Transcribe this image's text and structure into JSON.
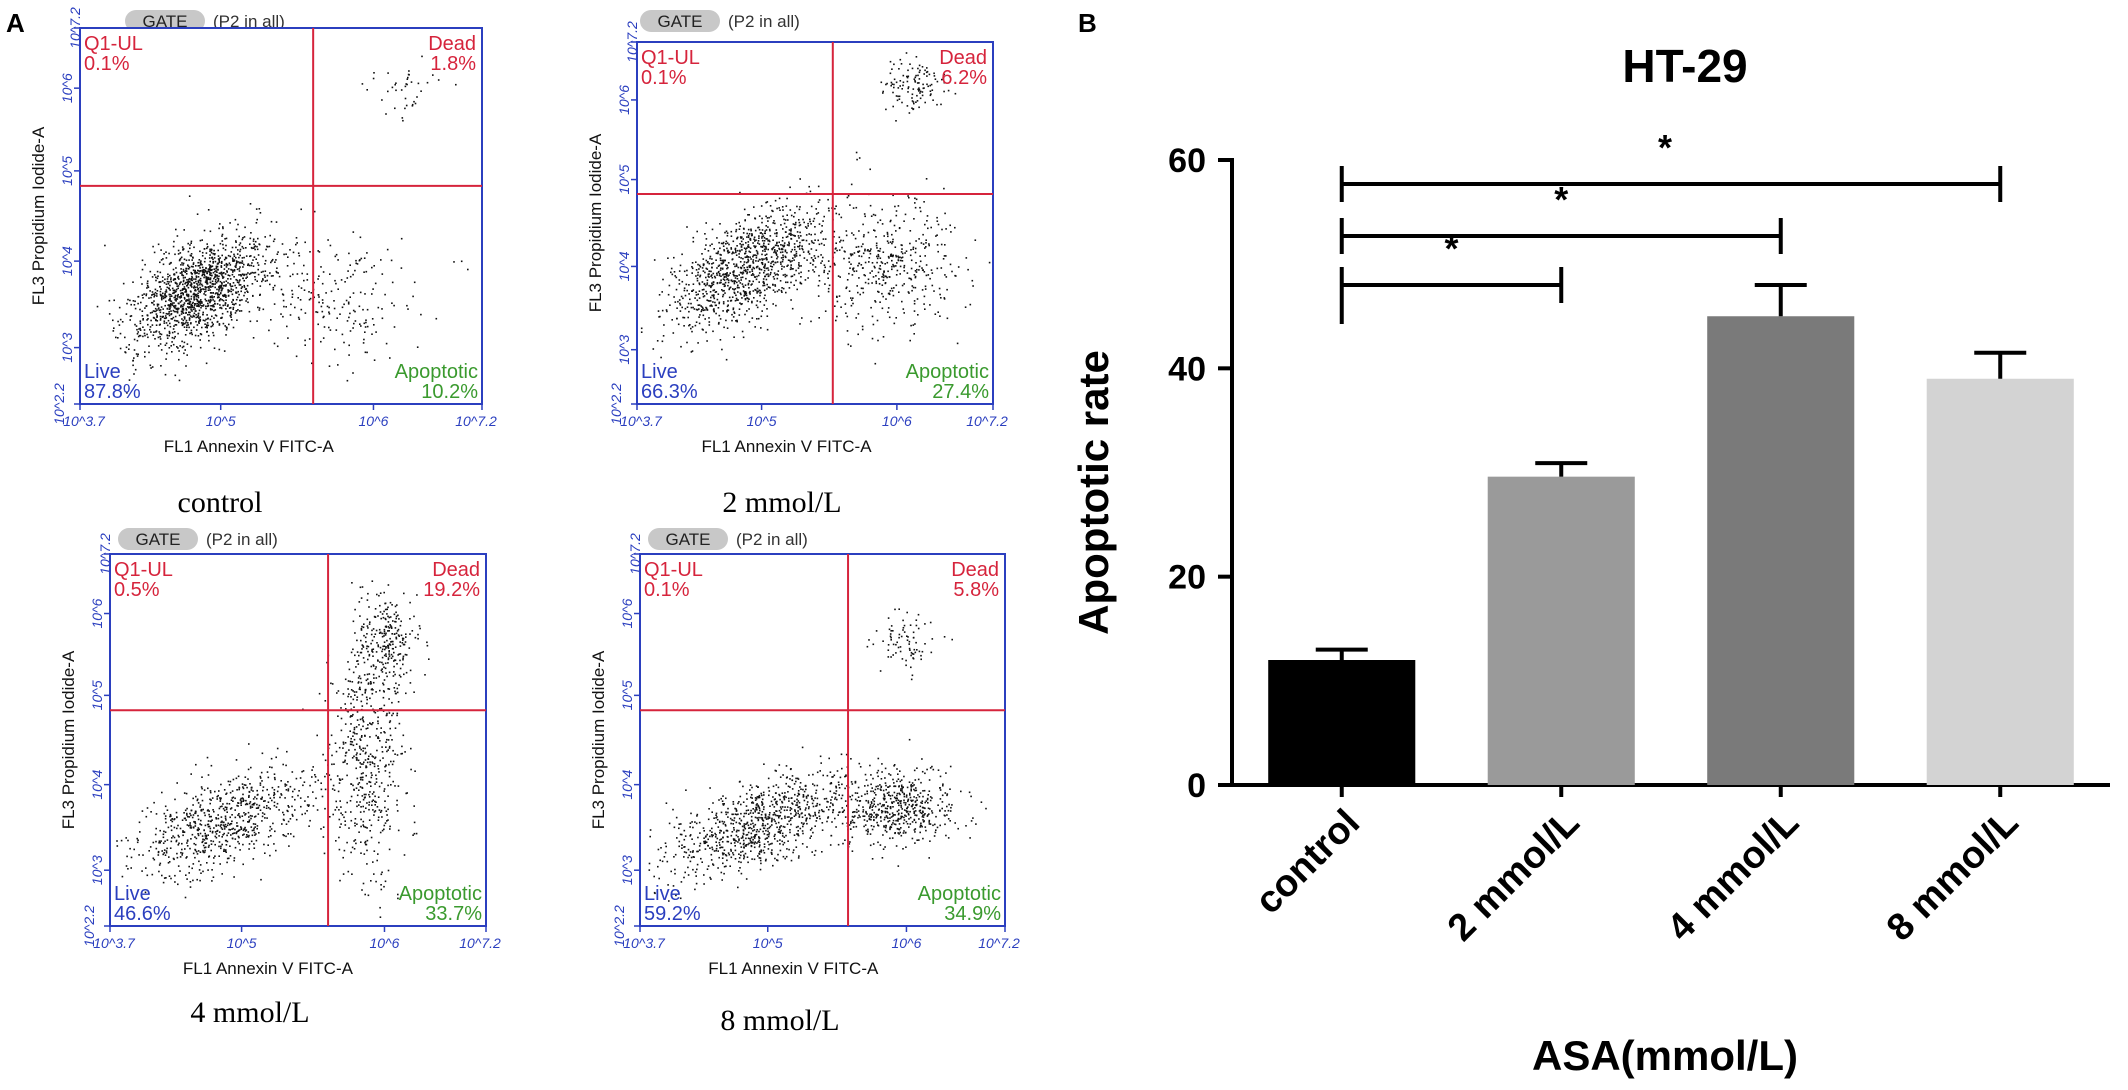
{
  "panels": {
    "a_label": "A",
    "b_label": "B"
  },
  "flow": {
    "gate_label": "GATE",
    "gate_desc": "(P2 in all)",
    "xlabel": "FL1 Annexin V FITC-A",
    "ylabel": "FL3 Propidium Iodide-A",
    "x_ticks": [
      "10^3.7",
      "10^5",
      "10^6",
      "10^7.2"
    ],
    "y_ticks": [
      "10^2.2",
      "10^3",
      "10^4",
      "10^5",
      "10^6",
      "10^7.2"
    ],
    "quadrant_colors": {
      "ul": "#d6243c",
      "ur": "#d6243c",
      "ll": "#2b3fbf",
      "lr": "#3a9a2e"
    },
    "plots": [
      {
        "caption": "control",
        "ul_name": "Q1-UL",
        "ul_val": "0.1%",
        "ur_name": "Dead",
        "ur_val": "1.8%",
        "ll_name": "Live",
        "ll_val": "87.8%",
        "lr_name": "Apoptotic",
        "lr_val": "10.2%"
      },
      {
        "caption": "2 mmol/L",
        "ul_name": "Q1-UL",
        "ul_val": "0.1%",
        "ur_name": "Dead",
        "ur_val": "6.2%",
        "ll_name": "Live",
        "ll_val": "66.3%",
        "lr_name": "Apoptotic",
        "lr_val": "27.4%"
      },
      {
        "caption": "4 mmol/L",
        "ul_name": "Q1-UL",
        "ul_val": "0.5%",
        "ur_name": "Dead",
        "ur_val": "19.2%",
        "ll_name": "Live",
        "ll_val": "46.6%",
        "lr_name": "Apoptotic",
        "lr_val": "33.7%"
      },
      {
        "caption": "8 mmol/L",
        "ul_name": "Q1-UL",
        "ul_val": "0.1%",
        "ur_name": "Dead",
        "ur_val": "5.8%",
        "ll_name": "Live",
        "ll_val": "59.2%",
        "lr_name": "Apoptotic",
        "lr_val": "34.9%"
      }
    ]
  },
  "chart_data": {
    "type": "bar",
    "title": "HT-29",
    "xlabel": "ASA(mmol/L)",
    "ylabel": "Apoptotic rate",
    "categories": [
      "control",
      "2 mmol/L",
      "4 mmol/L",
      "8 mmol/L"
    ],
    "values": [
      12,
      29.6,
      45,
      39
    ],
    "errors": [
      1,
      1.3,
      3,
      2.5
    ],
    "bar_colors": [
      "#000000",
      "#9a9a9a",
      "#7a7a7a",
      "#d3d3d3"
    ],
    "ylim": [
      0,
      60
    ],
    "yticks": [
      0,
      20,
      40,
      60
    ],
    "significance": [
      {
        "from": "control",
        "to": "2 mmol/L",
        "label": "*"
      },
      {
        "from": "control",
        "to": "4 mmol/L",
        "label": "*"
      },
      {
        "from": "control",
        "to": "8 mmol/L",
        "label": "*"
      }
    ]
  }
}
